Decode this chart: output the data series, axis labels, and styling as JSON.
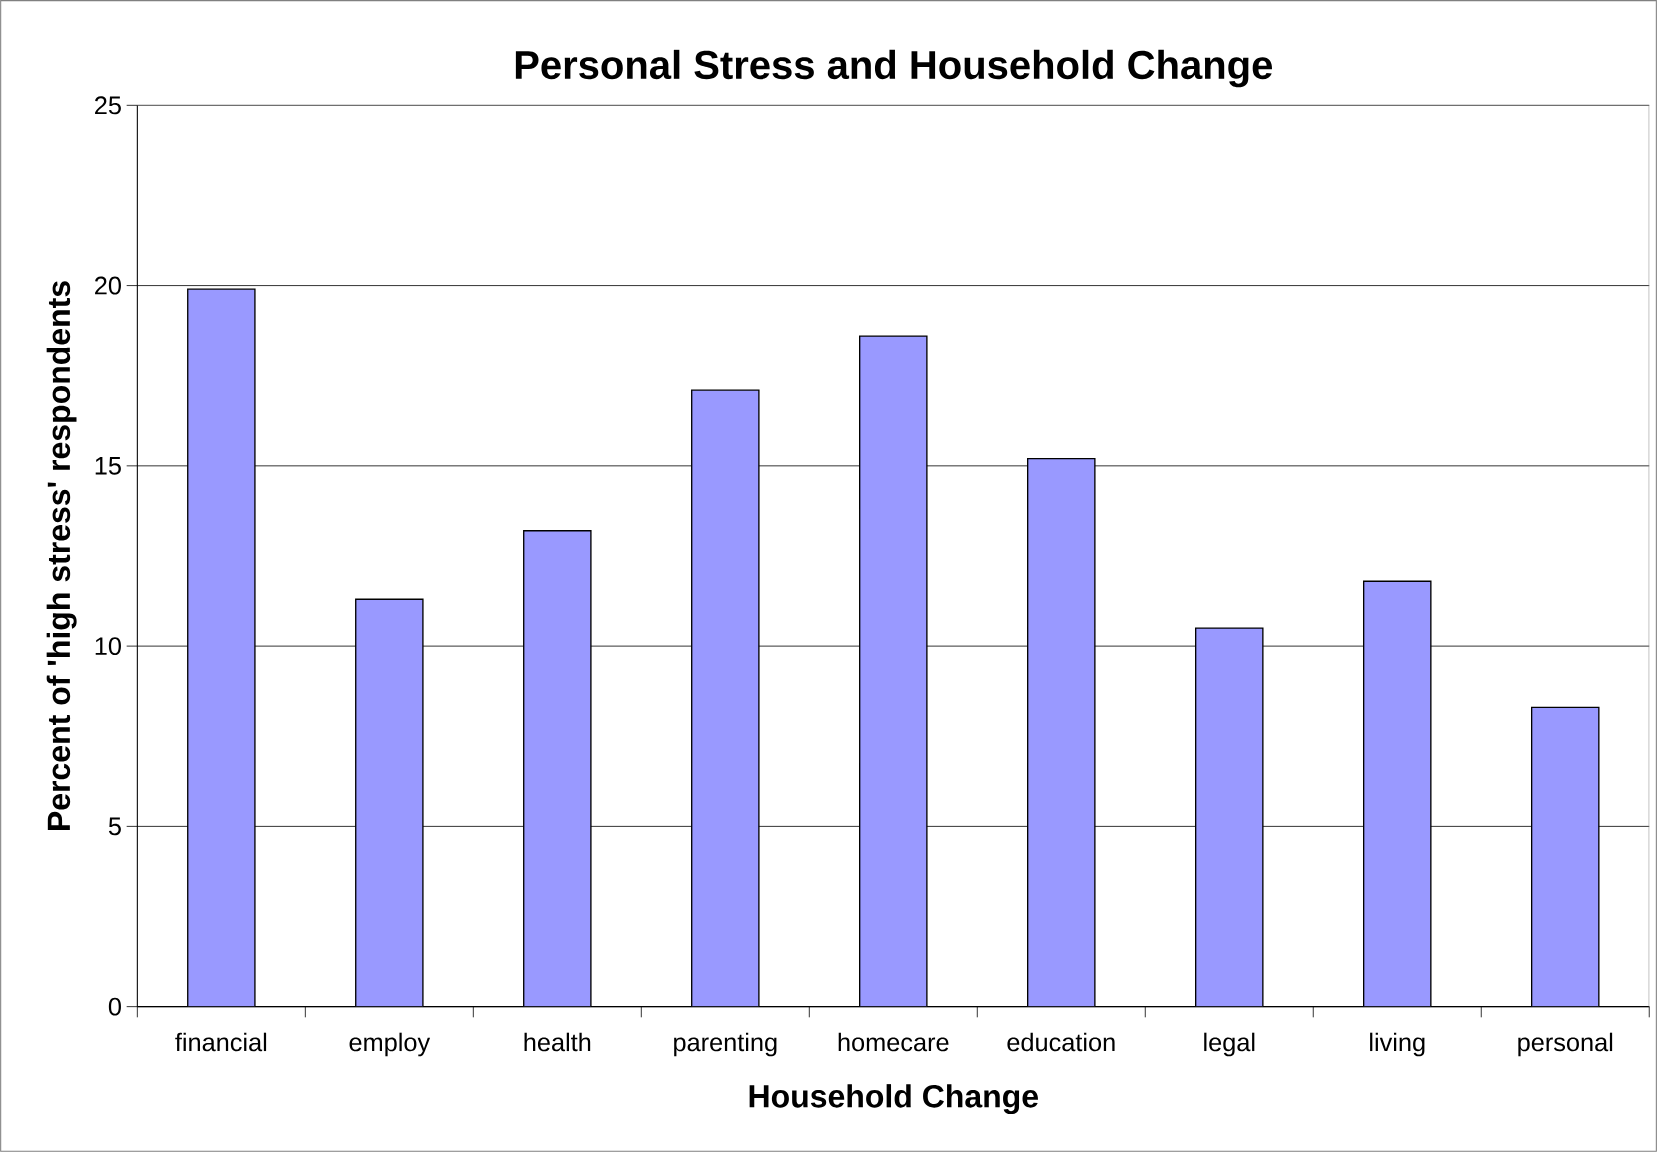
{
  "chart_data": {
    "type": "bar",
    "title": "Personal Stress and Household Change",
    "xlabel": "Household Change",
    "ylabel": "Percent of 'high stress' respondents",
    "categories": [
      "financial",
      "employ",
      "health",
      "parenting",
      "homecare",
      "education",
      "legal",
      "living",
      "personal"
    ],
    "values": [
      19.9,
      11.3,
      13.2,
      17.1,
      18.6,
      15.2,
      10.5,
      11.8,
      8.3
    ],
    "color": "#9999ff",
    "ylim": [
      0,
      25
    ],
    "yticks": [
      0,
      5,
      10,
      15,
      20,
      25
    ],
    "grid": "y"
  }
}
